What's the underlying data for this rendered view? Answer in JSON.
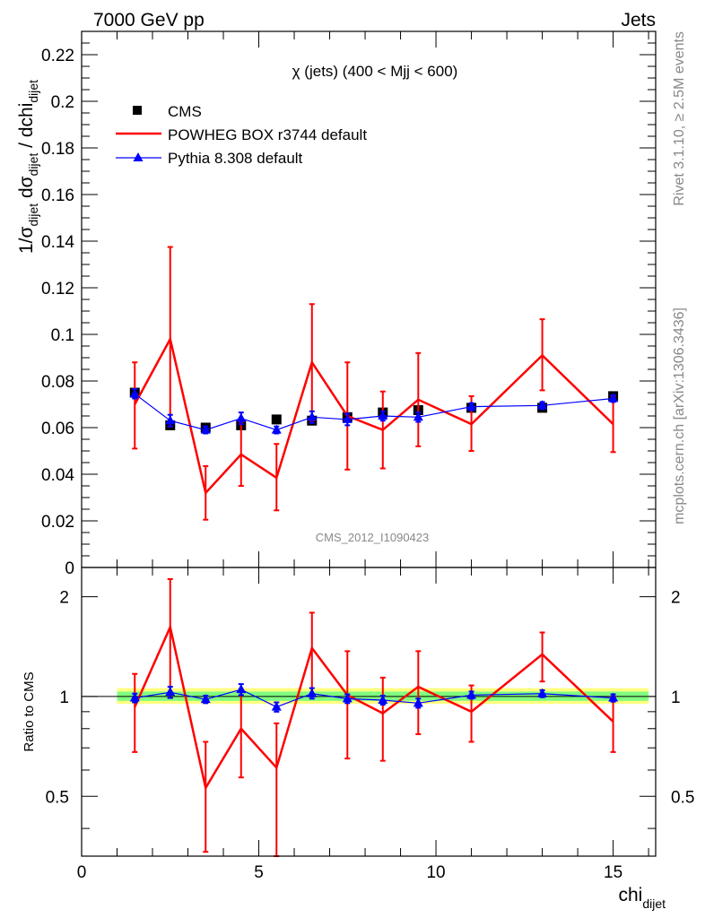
{
  "header": {
    "left": "7000 GeV pp",
    "right": "Jets"
  },
  "side_labels": {
    "top": "Rivet 3.1.10, ≥ 2.5M events",
    "bottom": "mcplots.cern.ch [arXiv:1306.3436]"
  },
  "colors": {
    "cms": "#000000",
    "powheg": "#ff0000",
    "pythia": "#0000ff",
    "band_outer": "#ffff80",
    "band_inner": "#80ff80"
  },
  "chart_data": [
    {
      "type": "line",
      "title": "χ (jets) (400 < Mjj <  600)",
      "watermark": "CMS_2012_I1090423",
      "ylabel": "1/σdijet dσdijet / dchidijet",
      "ylim": [
        0,
        0.23
      ],
      "xlim": [
        0,
        16.2
      ],
      "yticks": [
        "0",
        "0.02",
        "0.04",
        "0.06",
        "0.08",
        "0.1",
        "0.12",
        "0.14",
        "0.16",
        "0.18",
        "0.2",
        "0.22"
      ],
      "x": [
        1.5,
        2.5,
        3.5,
        4.5,
        5.5,
        6.5,
        7.5,
        8.5,
        9.5,
        11,
        13,
        15
      ],
      "series": [
        {
          "name": "CMS",
          "values": [
            0.075,
            0.061,
            0.06,
            0.061,
            0.0635,
            0.063,
            0.0645,
            0.0665,
            0.0675,
            0.0685,
            0.0685,
            0.0735
          ]
        },
        {
          "name": "POWHEG BOX r3744 default",
          "values": [
            0.07,
            0.098,
            0.032,
            0.0485,
            0.0385,
            0.088,
            0.065,
            0.059,
            0.072,
            0.0615,
            0.091,
            0.0615
          ],
          "err_low": [
            0.051,
            0.0605,
            0.0205,
            0.035,
            0.0245,
            0.063,
            0.042,
            0.0425,
            0.052,
            0.05,
            0.076,
            0.0495
          ],
          "err_high": [
            0.088,
            0.1375,
            0.0435,
            0.0625,
            0.053,
            0.113,
            0.088,
            0.0755,
            0.092,
            0.0735,
            0.1065,
            0.0735
          ]
        },
        {
          "name": "Pythia 8.308 default",
          "values": [
            0.0745,
            0.063,
            0.059,
            0.064,
            0.059,
            0.0645,
            0.0635,
            0.065,
            0.0645,
            0.069,
            0.0695,
            0.0725
          ],
          "err_low": [
            0.0725,
            0.0605,
            0.0575,
            0.0615,
            0.0575,
            0.062,
            0.061,
            0.063,
            0.0625,
            0.0675,
            0.068,
            0.071
          ],
          "err_high": [
            0.0765,
            0.0655,
            0.0605,
            0.0665,
            0.0605,
            0.067,
            0.066,
            0.067,
            0.0665,
            0.0705,
            0.071,
            0.074
          ]
        }
      ],
      "legend": "top-left"
    },
    {
      "type": "line",
      "ylabel": "Ratio to CMS",
      "xlabel": "chidijet",
      "ylim": [
        0.33,
        2.45
      ],
      "yscale": "log",
      "yticks": [
        "0.5",
        "1",
        "2"
      ],
      "xticks": [
        "0",
        "5",
        "10",
        "15"
      ],
      "x": [
        1.5,
        2.5,
        3.5,
        4.5,
        5.5,
        6.5,
        7.5,
        8.5,
        9.5,
        11,
        13,
        15
      ],
      "band_outer": [
        0.95,
        1.06
      ],
      "band_inner": [
        0.97,
        1.035
      ],
      "series": [
        {
          "name": "POWHEG BOX r3744 default",
          "values": [
            0.93,
            1.62,
            0.53,
            0.8,
            0.61,
            1.4,
            1.01,
            0.89,
            1.07,
            0.9,
            1.34,
            0.84
          ],
          "err_low": [
            0.68,
            0.99,
            0.34,
            0.57,
            0.32,
            1.0,
            0.65,
            0.64,
            0.77,
            0.73,
            1.11,
            0.68
          ],
          "err_high": [
            1.17,
            2.26,
            0.73,
            1.03,
            0.83,
            1.79,
            1.37,
            1.14,
            1.37,
            1.08,
            1.56,
            1.0
          ]
        },
        {
          "name": "Pythia 8.308 default",
          "values": [
            0.99,
            1.03,
            0.98,
            1.05,
            0.93,
            1.02,
            0.985,
            0.975,
            0.955,
            1.01,
            1.02,
            0.99
          ],
          "err_low": [
            0.96,
            0.99,
            0.955,
            1.01,
            0.9,
            0.985,
            0.955,
            0.945,
            0.925,
            0.985,
            0.995,
            0.965
          ],
          "err_high": [
            1.02,
            1.07,
            1.005,
            1.09,
            0.96,
            1.06,
            1.015,
            1.005,
            0.985,
            1.035,
            1.045,
            1.015
          ]
        }
      ]
    }
  ]
}
